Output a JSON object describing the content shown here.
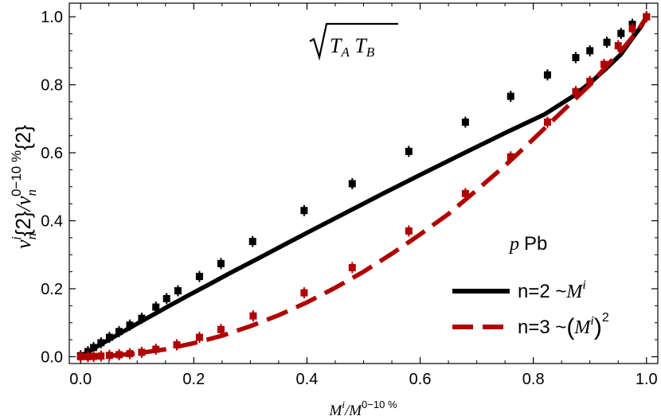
{
  "chart_data": {
    "type": "line",
    "title": "",
    "annotation_formula": "√(T_A T_B)",
    "system_label": {
      "italic": "p",
      "rest": "Pb"
    },
    "xlabel": {
      "base": "M",
      "sup": "i",
      "den_base": "M",
      "den_sup": "0−10 %"
    },
    "ylabel": {
      "base": "v",
      "sub": "n",
      "sup": "i",
      "brace": "{2}",
      "den_base": "v",
      "den_sub": "n",
      "den_sup": "0−10 %",
      "den_brace": "{2}"
    },
    "xlim": [
      -0.02,
      1.02
    ],
    "ylim": [
      -0.02,
      1.04
    ],
    "xticks": [
      "0.0",
      "0.2",
      "0.4",
      "0.6",
      "0.8",
      "1.0"
    ],
    "yticks": [
      "0.0",
      "0.2",
      "0.4",
      "0.6",
      "0.8",
      "1.0"
    ],
    "grid": false,
    "legend_position": "bottom-right",
    "series": [
      {
        "name": "n=2 ~M^i",
        "legend": {
          "text": "n=2 ~",
          "base": "M",
          "sup": "i"
        },
        "color": "#000000",
        "dash": "solid",
        "x": [
          0.0,
          0.005,
          0.013,
          0.023,
          0.036,
          0.051,
          0.068,
          0.087,
          0.108,
          0.133,
          0.16,
          0.19,
          0.225,
          0.264,
          0.308,
          0.357,
          0.41,
          0.468,
          0.531,
          0.6,
          0.675,
          0.755,
          0.82,
          0.87,
          0.905,
          0.932,
          0.955,
          0.972,
          0.99,
          1.0
        ],
        "y": [
          0.0,
          0.006,
          0.014,
          0.024,
          0.037,
          0.051,
          0.067,
          0.085,
          0.105,
          0.128,
          0.153,
          0.18,
          0.211,
          0.246,
          0.284,
          0.327,
          0.373,
          0.423,
          0.477,
          0.535,
          0.597,
          0.662,
          0.713,
          0.766,
          0.812,
          0.853,
          0.89,
          0.93,
          0.97,
          1.0
        ],
        "markers_x": [
          0.0,
          0.013,
          0.023,
          0.036,
          0.051,
          0.068,
          0.087,
          0.108,
          0.133,
          0.152,
          0.172,
          0.21,
          0.248,
          0.304,
          0.395,
          0.48,
          0.58,
          0.68,
          0.76,
          0.825,
          0.875,
          0.9,
          0.93,
          0.955,
          0.975,
          1.0
        ],
        "markers_y": [
          0.003,
          0.015,
          0.027,
          0.041,
          0.057,
          0.074,
          0.093,
          0.113,
          0.146,
          0.171,
          0.194,
          0.236,
          0.274,
          0.339,
          0.43,
          0.509,
          0.604,
          0.69,
          0.766,
          0.829,
          0.88,
          0.9,
          0.925,
          0.951,
          0.978,
          1.0
        ]
      },
      {
        "name": "n=3 ~(M^i)^2",
        "legend": {
          "text": "n=3 ~",
          "base": "M",
          "sup": "i",
          "outer_sup": "2"
        },
        "color": "#b00000",
        "dash": "dashed",
        "x": [
          0.0,
          0.03,
          0.06,
          0.1,
          0.15,
          0.2,
          0.25,
          0.3,
          0.35,
          0.4,
          0.45,
          0.5,
          0.55,
          0.6,
          0.65,
          0.7,
          0.75,
          0.8,
          0.85,
          0.9,
          0.93,
          0.96,
          0.985,
          1.0
        ],
        "y": [
          0.0,
          0.001,
          0.004,
          0.01,
          0.022,
          0.04,
          0.062,
          0.09,
          0.122,
          0.16,
          0.203,
          0.25,
          0.303,
          0.36,
          0.42,
          0.49,
          0.562,
          0.64,
          0.72,
          0.8,
          0.856,
          0.91,
          0.96,
          1.0
        ],
        "markers_x": [
          0.0,
          0.013,
          0.023,
          0.036,
          0.051,
          0.068,
          0.087,
          0.108,
          0.133,
          0.17,
          0.21,
          0.248,
          0.305,
          0.395,
          0.48,
          0.58,
          0.68,
          0.76,
          0.825,
          0.875,
          0.9,
          0.925,
          0.95,
          0.975,
          1.0
        ],
        "markers_y": [
          0.0,
          0.0003,
          0.001,
          0.002,
          0.004,
          0.006,
          0.009,
          0.013,
          0.022,
          0.035,
          0.057,
          0.08,
          0.12,
          0.188,
          0.262,
          0.37,
          0.48,
          0.588,
          0.69,
          0.78,
          0.81,
          0.86,
          0.915,
          0.965,
          1.0
        ]
      }
    ]
  }
}
